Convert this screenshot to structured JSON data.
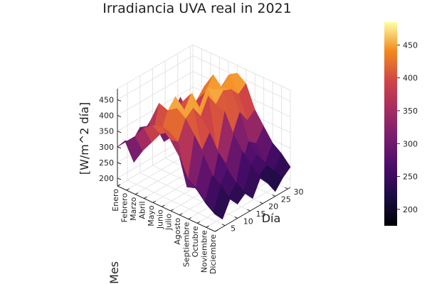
{
  "chart_data": {
    "type": "surface",
    "title": "Irradiancia UVA real in 2021",
    "xlabel": "Mes",
    "ylabel": "Día",
    "zlabel": "[W/m^2 día]",
    "months": [
      "Enero",
      "Febrero",
      "Marzo",
      "Abril",
      "Mayo",
      "Junio",
      "Julio",
      "Agosto",
      "Septiembre",
      "Octubre",
      "Noviembre",
      "Diciembre"
    ],
    "day_ticks": [
      5,
      10,
      15,
      20,
      25,
      30
    ],
    "z_ticks": [
      200,
      250,
      300,
      350,
      400,
      450
    ],
    "colorbar": {
      "min": 175,
      "max": 485,
      "ticks": [
        200,
        250,
        300,
        350,
        400,
        450
      ],
      "colormap": "inferno"
    },
    "days": [
      1,
      4,
      7,
      10,
      13,
      16,
      19,
      22,
      25,
      28,
      31
    ],
    "z": [
      [
        300,
        305,
        290,
        320,
        310,
        300,
        315,
        305,
        290,
        310,
        300
      ],
      [
        330,
        250,
        320,
        300,
        340,
        260,
        330,
        310,
        280,
        320,
        300
      ],
      [
        360,
        300,
        380,
        320,
        350,
        290,
        400,
        340,
        310,
        360,
        330
      ],
      [
        400,
        340,
        450,
        380,
        350,
        410,
        330,
        390,
        420,
        360,
        380
      ],
      [
        420,
        380,
        440,
        470,
        400,
        450,
        380,
        430,
        470,
        410,
        440
      ],
      [
        430,
        400,
        460,
        440,
        480,
        420,
        470,
        450,
        440,
        470,
        460
      ],
      [
        400,
        380,
        440,
        460,
        420,
        470,
        430,
        460,
        450,
        420,
        440
      ],
      [
        360,
        250,
        400,
        340,
        380,
        300,
        420,
        330,
        390,
        350,
        370
      ],
      [
        300,
        260,
        350,
        220,
        330,
        280,
        360,
        240,
        310,
        290,
        330
      ],
      [
        280,
        230,
        300,
        250,
        290,
        210,
        320,
        260,
        280,
        240,
        290
      ],
      [
        250,
        210,
        280,
        230,
        260,
        220,
        290,
        240,
        260,
        230,
        270
      ],
      [
        230,
        200,
        250,
        220,
        240,
        210,
        260,
        230,
        190,
        220,
        240
      ]
    ]
  }
}
